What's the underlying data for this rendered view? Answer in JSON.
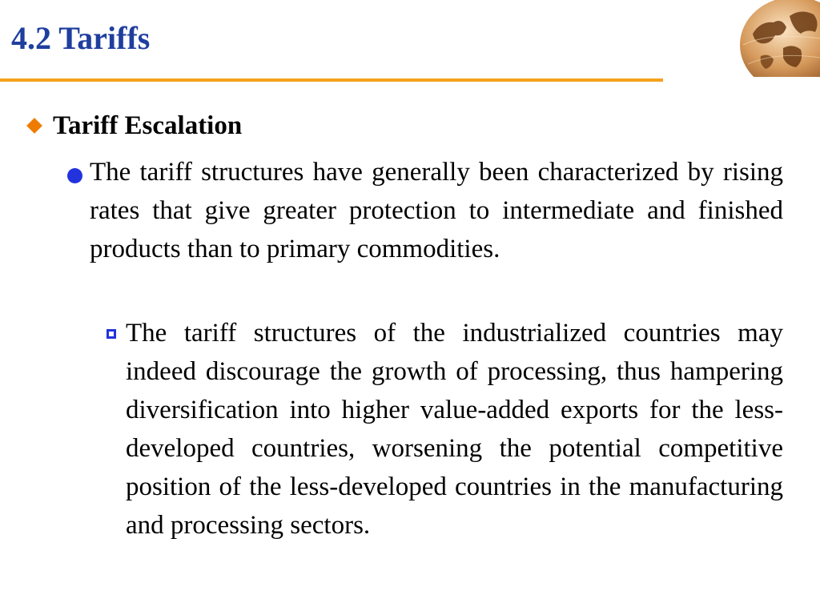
{
  "slide": {
    "title": "4.2 Tariffs",
    "logo_icon": "globe-icon",
    "colors": {
      "title": "#1f3f9e",
      "rule": "#f4a21c",
      "diamond_bullet": "#ef7c00",
      "bullets": "#2233dd"
    }
  },
  "content": {
    "level1": {
      "bullet_icon": "diamond-bullet-icon",
      "text": "Tariff Escalation"
    },
    "level2": {
      "bullet_icon": "dot-bullet-icon",
      "text": "The tariff structures have generally been characterized by rising rates that give greater protection to intermediate and finished products than to primary commodities."
    },
    "level3": {
      "bullet_icon": "hollow-square-bullet-icon",
      "text": "The tariff structures of the industrialized countries may indeed discourage the growth of processing, thus hampering diversification into higher value-added exports for the less-developed countries, worsening the potential competitive position of the less-developed countries in the manufacturing and processing sectors."
    }
  }
}
